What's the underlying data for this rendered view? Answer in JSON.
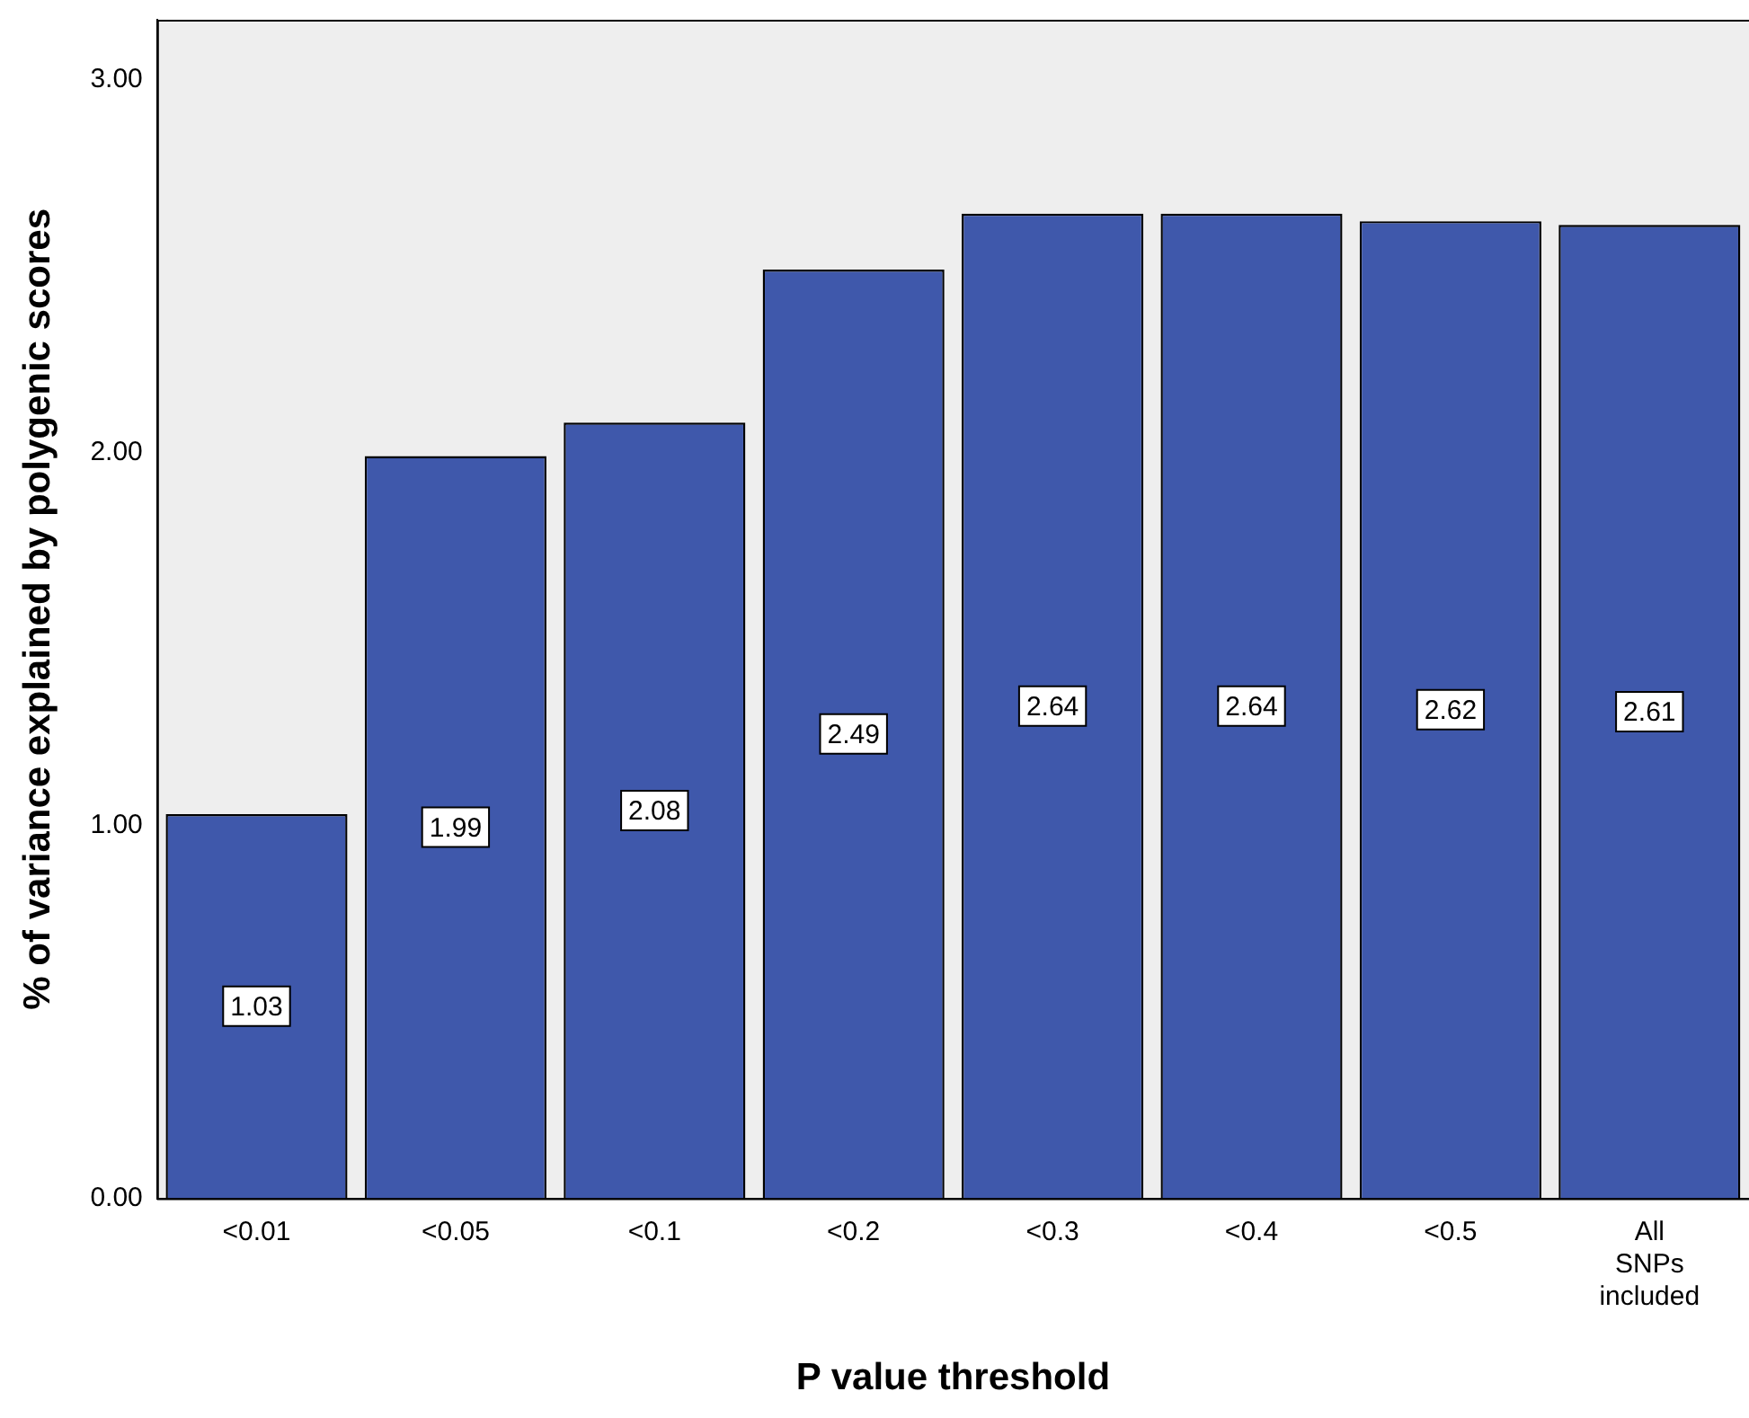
{
  "chart_data": {
    "type": "bar",
    "xlabel": "P value threshold",
    "ylabel": "% of variance explained by polygenic scores",
    "categories": [
      "<0.01",
      "<0.05",
      "<0.1",
      "<0.2",
      "<0.3",
      "<0.4",
      "<0.5",
      "All SNPs included"
    ],
    "values": [
      1.03,
      1.99,
      2.08,
      2.49,
      2.64,
      2.64,
      2.62,
      2.61
    ],
    "color": "#3f58ab",
    "ylim": [
      0,
      3.16
    ],
    "yticks": [
      {
        "value": 0,
        "label": "0.00"
      },
      {
        "value": 1,
        "label": "1.00"
      },
      {
        "value": 2,
        "label": "2.00"
      },
      {
        "value": 3,
        "label": "3.00"
      }
    ],
    "data_labels": true,
    "grid": false,
    "legend": false
  }
}
